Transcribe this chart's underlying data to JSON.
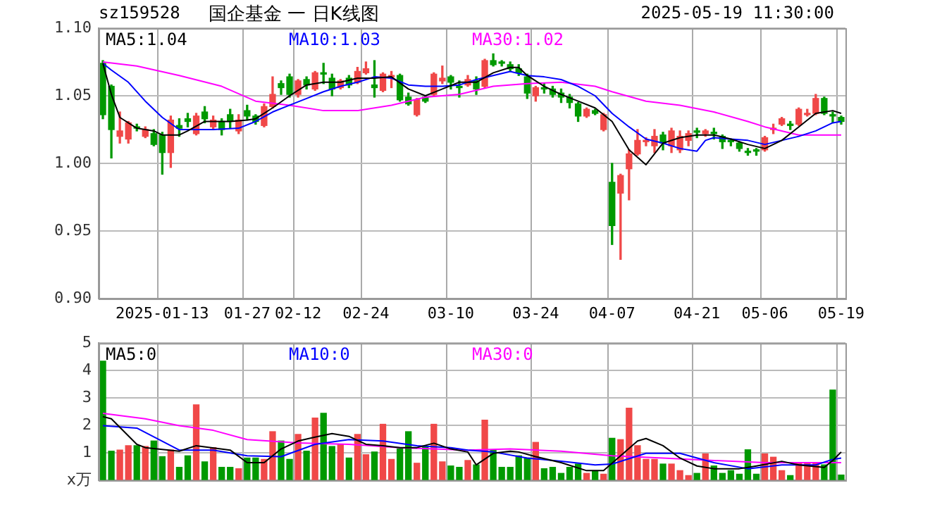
{
  "chart_data": [
    {
      "type": "candlestick",
      "title": "国企基金 一 日K线图",
      "annotations": [
        "sz159528",
        "2025-05-19 11:30:00"
      ],
      "categories": [
        null,
        null,
        null,
        null,
        null,
        null,
        null,
        "2025-01-13",
        null,
        null,
        null,
        null,
        null,
        null,
        null,
        null,
        null,
        "01-27",
        null,
        null,
        null,
        null,
        null,
        "02-12",
        null,
        null,
        null,
        null,
        null,
        null,
        null,
        "02-24",
        null,
        null,
        null,
        null,
        null,
        null,
        null,
        null,
        null,
        "03-10",
        null,
        null,
        null,
        null,
        null,
        null,
        null,
        null,
        null,
        "03-24",
        null,
        null,
        null,
        null,
        null,
        null,
        null,
        null,
        "04-07",
        null,
        null,
        null,
        null,
        null,
        null,
        null,
        null,
        null,
        "04-21",
        null,
        null,
        null,
        null,
        null,
        null,
        null,
        "05-06",
        null,
        null,
        null,
        null,
        null,
        null,
        null,
        null,
        "05-19"
      ],
      "ohlc": [
        [
          1.074,
          1.076,
          1.033,
          1.036
        ],
        [
          1.057,
          1.058,
          1.004,
          1.025
        ],
        [
          1.02,
          1.038,
          1.015,
          1.024
        ],
        [
          1.018,
          1.031,
          1.015,
          1.03
        ],
        [
          1.027,
          1.029,
          1.024,
          1.026
        ],
        [
          1.02,
          1.027,
          1.019,
          1.025
        ],
        [
          1.022,
          1.025,
          1.013,
          1.014
        ],
        [
          1.021,
          1.023,
          0.992,
          1.008
        ],
        [
          1.008,
          1.035,
          0.997,
          1.032
        ],
        [
          1.028,
          1.033,
          1.02,
          1.026
        ],
        [
          1.033,
          1.037,
          1.027,
          1.031
        ],
        [
          1.022,
          1.037,
          1.021,
          1.035
        ],
        [
          1.038,
          1.042,
          1.03,
          1.033
        ],
        [
          1.027,
          1.035,
          1.025,
          1.032
        ],
        [
          1.031,
          1.033,
          1.021,
          1.025
        ],
        [
          1.036,
          1.04,
          1.026,
          1.031
        ],
        [
          1.024,
          1.036,
          1.022,
          1.032
        ],
        [
          1.039,
          1.043,
          1.032,
          1.035
        ],
        [
          1.035,
          1.036,
          1.029,
          1.031
        ],
        [
          1.028,
          1.044,
          1.027,
          1.042
        ],
        [
          1.042,
          1.064,
          1.041,
          1.051
        ],
        [
          1.059,
          1.061,
          1.051,
          1.056
        ],
        [
          1.064,
          1.066,
          1.049,
          1.051
        ],
        [
          1.051,
          1.062,
          1.049,
          1.061
        ],
        [
          1.062,
          1.064,
          1.055,
          1.058
        ],
        [
          1.055,
          1.068,
          1.054,
          1.067
        ],
        [
          1.067,
          1.074,
          1.059,
          1.066
        ],
        [
          1.063,
          1.066,
          1.05,
          1.055
        ],
        [
          1.056,
          1.062,
          1.055,
          1.061
        ],
        [
          1.063,
          1.065,
          1.056,
          1.058
        ],
        [
          1.06,
          1.071,
          1.059,
          1.068
        ],
        [
          1.067,
          1.075,
          1.066,
          1.07
        ],
        [
          1.058,
          1.076,
          1.049,
          1.056
        ],
        [
          1.054,
          1.067,
          1.053,
          1.066
        ],
        [
          1.064,
          1.068,
          1.056,
          1.065
        ],
        [
          1.065,
          1.066,
          1.046,
          1.047
        ],
        [
          1.049,
          1.052,
          1.043,
          1.044
        ],
        [
          1.036,
          1.048,
          1.035,
          1.047
        ],
        [
          1.049,
          1.05,
          1.045,
          1.046
        ],
        [
          1.051,
          1.067,
          1.05,
          1.066
        ],
        [
          1.061,
          1.072,
          1.059,
          1.063
        ],
        [
          1.064,
          1.065,
          1.055,
          1.06
        ],
        [
          1.057,
          1.061,
          1.049,
          1.056
        ],
        [
          1.058,
          1.065,
          1.057,
          1.062
        ],
        [
          1.061,
          1.064,
          1.051,
          1.055
        ],
        [
          1.057,
          1.077,
          1.056,
          1.076
        ],
        [
          1.076,
          1.081,
          1.072,
          1.073
        ],
        [
          1.074,
          1.076,
          1.072,
          1.074
        ],
        [
          1.073,
          1.075,
          1.068,
          1.07
        ],
        [
          1.07,
          1.073,
          1.065,
          1.067
        ],
        [
          1.064,
          1.066,
          1.048,
          1.052
        ],
        [
          1.05,
          1.057,
          1.046,
          1.056
        ],
        [
          1.056,
          1.059,
          1.052,
          1.055
        ],
        [
          1.055,
          1.057,
          1.049,
          1.051
        ],
        [
          1.052,
          1.055,
          1.045,
          1.049
        ],
        [
          1.049,
          1.051,
          1.041,
          1.045
        ],
        [
          1.044,
          1.045,
          1.031,
          1.035
        ],
        [
          1.035,
          1.041,
          1.034,
          1.04
        ],
        [
          1.039,
          1.04,
          1.036,
          1.037
        ],
        [
          1.025,
          1.037,
          1.024,
          1.036
        ],
        [
          0.986,
          1.0,
          0.94,
          0.954
        ],
        [
          0.978,
          0.992,
          0.929,
          0.991
        ],
        [
          0.996,
          1.01,
          0.973,
          1.007
        ],
        [
          1.007,
          1.025,
          1.006,
          1.017
        ],
        [
          1.016,
          1.019,
          1.013,
          1.017
        ],
        [
          1.013,
          1.025,
          1.008,
          1.02
        ],
        [
          1.021,
          1.023,
          1.01,
          1.015
        ],
        [
          1.013,
          1.026,
          1.008,
          1.024
        ],
        [
          1.01,
          1.024,
          1.008,
          1.02
        ],
        [
          1.017,
          1.024,
          1.013,
          1.022
        ],
        [
          1.023,
          1.026,
          1.019,
          1.023
        ],
        [
          1.022,
          1.025,
          1.02,
          1.024
        ],
        [
          1.023,
          1.026,
          1.018,
          1.022
        ],
        [
          1.02,
          1.021,
          1.011,
          1.016
        ],
        [
          1.016,
          1.018,
          1.013,
          1.016
        ],
        [
          1.015,
          1.016,
          1.009,
          1.011
        ],
        [
          1.008,
          1.011,
          1.006,
          1.008
        ],
        [
          1.009,
          1.011,
          1.006,
          1.009
        ],
        [
          1.01,
          1.02,
          1.009,
          1.019
        ],
        [
          1.025,
          1.029,
          1.022,
          1.026
        ],
        [
          1.029,
          1.034,
          1.028,
          1.033
        ],
        [
          1.028,
          1.031,
          1.025,
          1.028
        ],
        [
          1.029,
          1.041,
          1.028,
          1.04
        ],
        [
          1.036,
          1.04,
          1.035,
          1.037
        ],
        [
          1.037,
          1.051,
          1.036,
          1.048
        ],
        [
          1.048,
          1.049,
          1.036,
          1.037
        ],
        [
          1.035,
          1.038,
          1.03,
          1.035
        ],
        [
          1.034,
          1.035,
          1.029,
          1.031
        ]
      ],
      "colors": [
        "#009900",
        "#009900",
        "#f04848",
        "#f04848",
        "#009900",
        "#f04848",
        "#009900",
        "#009900",
        "#f04848",
        "#009900",
        "#009900",
        "#f04848",
        "#009900",
        "#f04848",
        "#009900",
        "#009900",
        "#f04848",
        "#009900",
        "#009900",
        "#f04848",
        "#f04848",
        "#009900",
        "#009900",
        "#f04848",
        "#009900",
        "#f04848",
        "#009900",
        "#009900",
        "#f04848",
        "#009900",
        "#f04848",
        "#f04848",
        "#009900",
        "#f04848",
        "#f04848",
        "#009900",
        "#009900",
        "#f04848",
        "#009900",
        "#f04848",
        "#f04848",
        "#009900",
        "#009900",
        "#f04848",
        "#009900",
        "#f04848",
        "#009900",
        "#009900",
        "#009900",
        "#009900",
        "#009900",
        "#f04848",
        "#009900",
        "#009900",
        "#009900",
        "#009900",
        "#009900",
        "#f04848",
        "#009900",
        "#f04848",
        "#009900",
        "#f04848",
        "#f04848",
        "#f04848",
        "#f04848",
        "#f04848",
        "#009900",
        "#f04848",
        "#f04848",
        "#f04848",
        "#009900",
        "#f04848",
        "#009900",
        "#009900",
        "#009900",
        "#009900",
        "#009900",
        "#009900",
        "#f04848",
        "#f04848",
        "#f04848",
        "#009900",
        "#f04848",
        "#f04848",
        "#f04848",
        "#009900",
        "#009900",
        "#009900"
      ],
      "series": [
        {
          "name": "MA5:1.04",
          "type": "line",
          "color": "#000000",
          "values": [
            1.074,
            1.051,
            1.034,
            null,
            1.026,
            null,
            1.024,
            1.021,
            null,
            1.021,
            1.024,
            null,
            1.031,
            null,
            null,
            1.031,
            null,
            1.032,
            1.033,
            null,
            1.041,
            null,
            1.05,
            null,
            1.058,
            null,
            1.06,
            null,
            1.06,
            null,
            1.063,
            null,
            1.063,
            null,
            1.064,
            null,
            1.055,
            null,
            1.05,
            null,
            1.055,
            null,
            1.06,
            null,
            1.06,
            null,
            1.067,
            null,
            1.071,
            1.071,
            1.065,
            null,
            1.057,
            null,
            1.051,
            null,
            1.046,
            null,
            1.041,
            null,
            1.031,
            null,
            1.01,
            null,
            0.999,
            null,
            1.015,
            null,
            1.019,
            null,
            1.021,
            null,
            1.021,
            null,
            1.018,
            null,
            1.014,
            null,
            1.011,
            null,
            1.017,
            null,
            1.027,
            null,
            1.037,
            null,
            1.039,
            1.037
          ]
        },
        {
          "name": "MA10:1.03",
          "type": "line",
          "color": "#0000ff",
          "values": [
            1.074,
            1.069,
            null,
            1.06,
            null,
            1.046,
            null,
            1.034,
            null,
            1.025,
            null,
            1.025,
            null,
            1.025,
            null,
            null,
            1.026,
            null,
            1.031,
            null,
            1.038,
            null,
            1.043,
            null,
            1.048,
            null,
            1.053,
            null,
            1.057,
            null,
            1.06,
            null,
            1.064,
            null,
            1.063,
            null,
            1.058,
            null,
            1.057,
            null,
            1.057,
            null,
            1.058,
            null,
            1.062,
            null,
            1.065,
            null,
            1.068,
            null,
            1.065,
            null,
            1.064,
            null,
            1.062,
            null,
            1.057,
            null,
            1.05,
            null,
            1.037,
            null,
            1.027,
            null,
            1.018,
            null,
            1.015,
            null,
            1.011,
            null,
            1.009,
            1.017,
            1.019,
            null,
            1.018,
            null,
            1.017,
            null,
            1.014,
            null,
            1.017,
            null,
            1.02,
            null,
            1.024,
            null,
            1.03,
            1.031
          ]
        },
        {
          "name": "MA30:1.02",
          "type": "line",
          "color": "#ff00ff",
          "values": [
            1.075,
            null,
            null,
            null,
            1.072,
            null,
            null,
            null,
            null,
            1.065,
            null,
            null,
            null,
            null,
            1.057,
            null,
            null,
            null,
            1.046,
            null,
            null,
            null,
            1.043,
            null,
            null,
            null,
            1.039,
            null,
            null,
            null,
            1.039,
            null,
            null,
            null,
            1.043,
            null,
            null,
            null,
            1.049,
            null,
            null,
            null,
            1.051,
            null,
            null,
            null,
            1.057,
            null,
            null,
            null,
            1.059,
            null,
            null,
            null,
            1.06,
            null,
            null,
            null,
            1.057,
            null,
            1.053,
            null,
            null,
            null,
            1.046,
            null,
            null,
            null,
            1.043,
            null,
            null,
            null,
            1.038,
            null,
            null,
            null,
            1.031,
            null,
            1.027,
            null,
            1.024,
            null,
            1.021,
            null,
            1.021,
            null,
            null,
            1.021
          ]
        }
      ],
      "ylim": [
        0.9,
        1.1
      ],
      "yticks": [
        {
          "value": 0.9,
          "label": "0.90"
        },
        {
          "value": 0.95,
          "label": "0.95"
        },
        {
          "value": 1.0,
          "label": "1.00"
        },
        {
          "value": 1.05,
          "label": "1.05"
        },
        {
          "value": 1.1,
          "label": "1.10"
        }
      ],
      "grid": true,
      "legend": "top left"
    },
    {
      "type": "bar",
      "categories": [
        null,
        null,
        null,
        null,
        null,
        null,
        null,
        null,
        null,
        null,
        null,
        null,
        null,
        null,
        null,
        null,
        null,
        null,
        null,
        null,
        null,
        null,
        null,
        null,
        null,
        null,
        null,
        null,
        null,
        null,
        null,
        null,
        null,
        null,
        null,
        null,
        null,
        null,
        null,
        null,
        null,
        null,
        null,
        null,
        null,
        null,
        null,
        null,
        null,
        null,
        null,
        null,
        null,
        null,
        null,
        null,
        null,
        null,
        null,
        null,
        null,
        null,
        null,
        null,
        null,
        null,
        null,
        null,
        null,
        null,
        null,
        null,
        null,
        null,
        null,
        null,
        null,
        null,
        null,
        null,
        null,
        null,
        null,
        null,
        null,
        null,
        null,
        null
      ],
      "values": [
        4.34,
        1.06,
        1.1,
        1.26,
        1.26,
        1.23,
        1.43,
        0.86,
        1.1,
        0.47,
        0.89,
        2.75,
        0.67,
        1.19,
        0.47,
        0.47,
        0.42,
        0.81,
        0.81,
        0.76,
        1.77,
        1.43,
        0.76,
        1.67,
        1.06,
        2.27,
        2.44,
        1.23,
        1.31,
        0.81,
        1.67,
        0.93,
        1.03,
        2.04,
        0.76,
        1.14,
        1.77,
        0.62,
        1.23,
        2.04,
        0.67,
        0.52,
        0.47,
        0.72,
        0.56,
        2.19,
        1.11,
        0.47,
        0.47,
        0.89,
        0.81,
        1.38,
        0.42,
        0.47,
        0.25,
        0.47,
        0.59,
        0.25,
        0.34,
        0.22,
        1.53,
        1.48,
        2.63,
        1.26,
        0.76,
        0.76,
        0.59,
        0.59,
        0.35,
        0.17,
        0.25,
        0.96,
        0.52,
        0.25,
        0.35,
        0.22,
        1.11,
        0.22,
        0.96,
        0.84,
        0.35,
        0.17,
        0.64,
        0.64,
        0.64,
        0.56,
        3.29,
        0.19
      ],
      "colors": [
        "#009900",
        "#009900",
        "#f04848",
        "#f04848",
        "#009900",
        "#f04848",
        "#009900",
        "#009900",
        "#f04848",
        "#009900",
        "#009900",
        "#f04848",
        "#009900",
        "#f04848",
        "#009900",
        "#009900",
        "#f04848",
        "#009900",
        "#009900",
        "#f04848",
        "#f04848",
        "#009900",
        "#009900",
        "#f04848",
        "#009900",
        "#f04848",
        "#009900",
        "#009900",
        "#f04848",
        "#009900",
        "#f04848",
        "#f04848",
        "#009900",
        "#f04848",
        "#f04848",
        "#009900",
        "#009900",
        "#f04848",
        "#009900",
        "#f04848",
        "#f04848",
        "#009900",
        "#009900",
        "#f04848",
        "#009900",
        "#f04848",
        "#009900",
        "#009900",
        "#009900",
        "#009900",
        "#009900",
        "#f04848",
        "#009900",
        "#009900",
        "#009900",
        "#009900",
        "#009900",
        "#f04848",
        "#009900",
        "#f04848",
        "#009900",
        "#f04848",
        "#f04848",
        "#f04848",
        "#f04848",
        "#f04848",
        "#009900",
        "#f04848",
        "#f04848",
        "#f04848",
        "#009900",
        "#f04848",
        "#009900",
        "#009900",
        "#009900",
        "#009900",
        "#009900",
        "#009900",
        "#f04848",
        "#f04848",
        "#f04848",
        "#009900",
        "#f04848",
        "#f04848",
        "#f04848",
        "#009900",
        "#009900",
        "#009900"
      ],
      "series": [
        {
          "name": "MA5:0",
          "type": "line",
          "color": "#000000",
          "values": [
            2.32,
            2.24,
            null,
            null,
            1.31,
            1.19,
            null,
            null,
            null,
            1.06,
            null,
            1.26,
            null,
            null,
            null,
            1.1,
            null,
            0.64,
            null,
            0.64,
            null,
            1.14,
            null,
            1.43,
            null,
            1.57,
            null,
            1.7,
            null,
            1.6,
            null,
            1.31,
            null,
            1.26,
            null,
            1.19,
            null,
            1.19,
            null,
            1.35,
            null,
            1.14,
            null,
            1.03,
            0.56,
            null,
            0.98,
            null,
            1.06,
            1.03,
            null,
            0.86,
            null,
            null,
            0.64,
            null,
            null,
            0.35,
            null,
            0.35,
            null,
            0.89,
            null,
            1.43,
            1.52,
            null,
            1.26,
            null,
            0.81,
            null,
            0.52,
            null,
            0.42,
            null,
            null,
            0.42,
            null,
            0.52,
            null,
            null,
            0.69,
            null,
            0.56,
            null,
            null,
            0.47,
            0.72,
            1.03
          ]
        },
        {
          "name": "MA10:0",
          "type": "line",
          "color": "#0000ff",
          "values": [
            1.99,
            null,
            null,
            null,
            1.9,
            null,
            null,
            null,
            null,
            1.1,
            null,
            null,
            null,
            1.1,
            null,
            null,
            null,
            0.89,
            null,
            null,
            null,
            0.86,
            null,
            null,
            null,
            1.31,
            null,
            null,
            null,
            1.48,
            null,
            null,
            null,
            1.43,
            null,
            null,
            null,
            1.26,
            null,
            null,
            null,
            1.19,
            null,
            1.1,
            null,
            null,
            1.03,
            null,
            null,
            null,
            0.81,
            null,
            null,
            null,
            0.69,
            null,
            null,
            null,
            0.56,
            null,
            0.59,
            null,
            null,
            null,
            0.98,
            null,
            null,
            null,
            0.98,
            null,
            null,
            null,
            0.64,
            null,
            null,
            null,
            0.42,
            null,
            null,
            null,
            0.56,
            null,
            null,
            null,
            0.56,
            null,
            0.76,
            0.81
          ]
        },
        {
          "name": "MA30:0",
          "type": "line",
          "color": "#ff00ff",
          "values": [
            2.44,
            null,
            null,
            null,
            null,
            2.24,
            null,
            null,
            null,
            1.99,
            null,
            null,
            null,
            1.82,
            null,
            null,
            null,
            1.48,
            null,
            null,
            null,
            null,
            null,
            1.36,
            null,
            null,
            null,
            null,
            null,
            1.31,
            null,
            null,
            null,
            null,
            null,
            1.19,
            null,
            null,
            null,
            null,
            null,
            null,
            null,
            1.1,
            null,
            null,
            null,
            null,
            1.14,
            null,
            null,
            null,
            null,
            null,
            1.06,
            null,
            null,
            null,
            null,
            null,
            0.89,
            null,
            null,
            null,
            null,
            null,
            0.81,
            null,
            null,
            null,
            null,
            null,
            0.72,
            null,
            null,
            null,
            null,
            null,
            0.64,
            null,
            null,
            null,
            null,
            null,
            null,
            null,
            null,
            0.64
          ]
        }
      ],
      "ylim": [
        0,
        5
      ],
      "yticks": [
        {
          "value": 0,
          "label": "x万"
        },
        1,
        2,
        3,
        4,
        5
      ],
      "grid": true,
      "legend": "top left",
      "tick_labels": "y"
    }
  ]
}
